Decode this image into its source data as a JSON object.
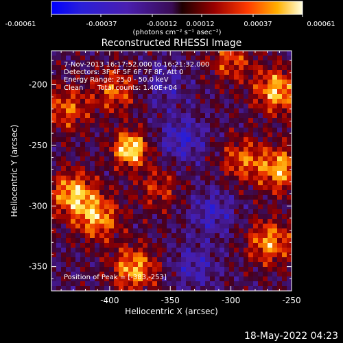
{
  "chart_data": {
    "type": "heatmap",
    "title": "Reconstructed RHESSI Image",
    "xlabel": "Heliocentric X (arcsec)",
    "ylabel": "Heliocentric Y (arcsec)",
    "xlim": [
      -448,
      -250
    ],
    "ylim": [
      -370,
      -172
    ],
    "x_ticks": [
      -400,
      -350,
      -300,
      -250
    ],
    "y_ticks": [
      -350,
      -300,
      -250,
      -200
    ],
    "colorbar": {
      "range": [
        -0.00061,
        0.00061
      ],
      "tick_labels": [
        "-0.00061",
        "-0.00037",
        "-0.00012",
        "0.00012",
        "0.00037",
        "0.00061"
      ],
      "tick_values": [
        -0.00061,
        -0.00037,
        -0.00012,
        0.00012,
        0.00037,
        0.00061
      ],
      "unit_label": "(photons cm⁻² s⁻¹ asec⁻²)"
    },
    "annotations": {
      "time_range": "7-Nov-2013 16:17:52.000 to 16:21:32.000",
      "detectors": "Detectors: 3F 4F 5F 6F 7F 8F, Att 0",
      "energy": "Energy Range: 25.0 - 50.0 keV",
      "method": "Clean",
      "counts": "Total counts: 1.40E+04",
      "peak": "Position of Peak = [-383,-253]"
    },
    "peak": {
      "x": -383,
      "y": -253
    },
    "bright_regions": [
      {
        "x": -383,
        "y": -253,
        "amplitude": 1.0
      },
      {
        "x": -430,
        "y": -290,
        "amplitude": 0.8
      },
      {
        "x": -410,
        "y": -310,
        "amplitude": 0.7
      },
      {
        "x": -262,
        "y": -205,
        "amplitude": 0.8
      },
      {
        "x": -258,
        "y": -270,
        "amplitude": 0.75
      },
      {
        "x": -268,
        "y": -330,
        "amplitude": 0.7
      },
      {
        "x": -380,
        "y": -352,
        "amplitude": 0.75
      },
      {
        "x": -435,
        "y": -220,
        "amplitude": 0.55
      },
      {
        "x": -395,
        "y": -205,
        "amplitude": 0.55
      },
      {
        "x": -300,
        "y": -180,
        "amplitude": 0.5
      },
      {
        "x": -290,
        "y": -262,
        "amplitude": 0.55
      },
      {
        "x": -360,
        "y": -285,
        "amplitude": 0.4
      }
    ],
    "dim_regions": [
      {
        "x": -340,
        "y": -245,
        "amplitude": -0.45
      },
      {
        "x": -315,
        "y": -305,
        "amplitude": -0.4
      },
      {
        "x": -355,
        "y": -200,
        "amplitude": -0.3
      },
      {
        "x": -330,
        "y": -350,
        "amplitude": -0.35
      }
    ]
  },
  "footer": {
    "date": "18-May-2022 04:23"
  }
}
